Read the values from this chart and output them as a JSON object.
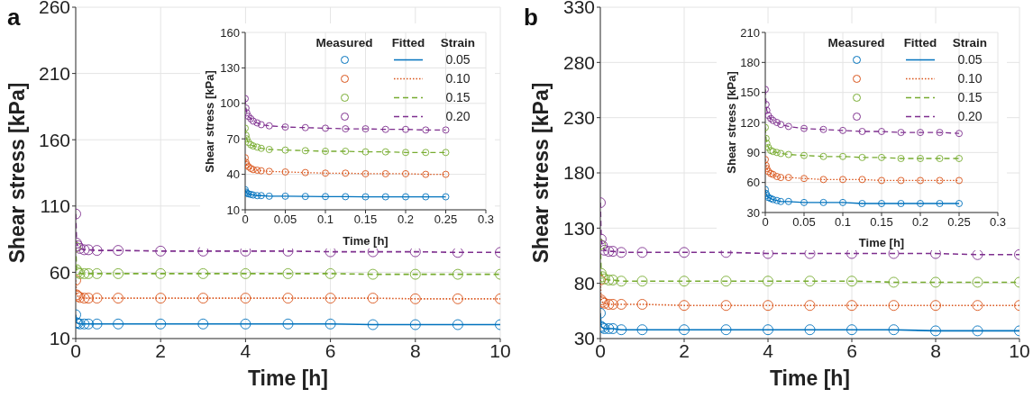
{
  "chart_data": [
    {
      "type": "line",
      "xlabel": "Time [h]",
      "ylabel": "Shear stress [kPa]",
      "annotations": [
        "a"
      ],
      "xlim": [
        0,
        10
      ],
      "ylim": [
        10,
        260
      ],
      "xticks": [
        0,
        2,
        4,
        6,
        8,
        10
      ],
      "yticks": [
        10,
        60,
        110,
        160,
        210,
        260
      ],
      "grid": true,
      "x": [
        0,
        0.02,
        0.05,
        0.1,
        0.2,
        0.3,
        0.5,
        1,
        2,
        3,
        4,
        5,
        6,
        7,
        8,
        9,
        10
      ],
      "series": [
        {
          "type": "scatter",
          "marker": "circle",
          "color": "#0072bd",
          "values": [
            28,
            22,
            21.5,
            21,
            21,
            21,
            21,
            21,
            21,
            21,
            21,
            21,
            21,
            20.5,
            20.5,
            20.5,
            20.5
          ]
        },
        {
          "type": "scatter",
          "marker": "circle",
          "color": "#d95319",
          "values": [
            54,
            43,
            42,
            41,
            40.5,
            40.5,
            40.5,
            40.5,
            40.5,
            40.5,
            40.5,
            40.5,
            40.5,
            40.5,
            40,
            40,
            40
          ]
        },
        {
          "type": "scatter",
          "marker": "circle",
          "color": "#77ac30",
          "values": [
            79,
            62,
            60,
            59,
            59,
            59,
            59,
            59,
            59,
            59,
            59,
            59,
            59,
            58.5,
            58.5,
            58.5,
            58.5
          ]
        },
        {
          "type": "scatter",
          "marker": "circle",
          "color": "#7e2f8e",
          "values": [
            104,
            82,
            80,
            78,
            77,
            77,
            76.5,
            76.5,
            76,
            76,
            76,
            76,
            75.5,
            75.5,
            75.5,
            75,
            75
          ]
        },
        {
          "type": "line",
          "line_style": "solid",
          "color": "#0072bd",
          "values": [
            28,
            22,
            21.5,
            21,
            21,
            21,
            21,
            21,
            21,
            21,
            21,
            21,
            21,
            20.5,
            20.5,
            20.5,
            20.5
          ]
        },
        {
          "type": "line",
          "line_style": "dotted",
          "color": "#d95319",
          "values": [
            54,
            43,
            42,
            41,
            40.5,
            40.5,
            40.5,
            40.5,
            40.5,
            40.5,
            40.5,
            40.5,
            40.5,
            40.5,
            40,
            40,
            40
          ]
        },
        {
          "type": "line",
          "line_style": "dashed",
          "color": "#77ac30",
          "values": [
            79,
            62,
            60,
            59,
            59,
            59,
            59,
            59,
            59,
            59,
            59,
            59,
            59,
            58.5,
            58.5,
            58.5,
            58.5
          ]
        },
        {
          "type": "line",
          "line_style": "dashed",
          "color": "#7e2f8e",
          "values": [
            104,
            82,
            80,
            78,
            77,
            77,
            76.5,
            76.5,
            76,
            76,
            76,
            76,
            75.5,
            75.5,
            75.5,
            75,
            75
          ]
        }
      ]
    },
    {
      "type": "line",
      "xlabel": "Time [h]",
      "ylabel": "Shear stress [kPa]",
      "annotations": [
        "Measured",
        "Fitted"
      ],
      "legend_title": "Strain",
      "legend": "top right",
      "xlim": [
        0,
        0.3
      ],
      "ylim": [
        10,
        160
      ],
      "xticks": [
        0,
        0.05,
        0.1,
        0.15,
        0.2,
        0.25,
        0.3
      ],
      "yticks": [
        10,
        40,
        70,
        100,
        130,
        160
      ],
      "grid": true,
      "x": [
        0,
        0.001,
        0.002,
        0.004,
        0.007,
        0.01,
        0.015,
        0.02,
        0.03,
        0.05,
        0.075,
        0.1,
        0.125,
        0.15,
        0.175,
        0.2,
        0.225,
        0.25
      ],
      "series": [
        {
          "type": "scatter",
          "marker": "circle",
          "name": "0.05",
          "color": "#0072bd",
          "values": [
            27,
            25,
            24,
            23.5,
            23,
            22.5,
            22,
            22,
            21.5,
            21.5,
            21.3,
            21.2,
            21.1,
            21,
            21,
            21,
            21,
            21
          ]
        },
        {
          "type": "scatter",
          "marker": "circle",
          "name": "0.10",
          "color": "#d95319",
          "values": [
            54,
            50,
            48,
            46.5,
            45,
            44,
            43.5,
            43,
            42.5,
            42,
            41.5,
            41,
            41,
            40.5,
            40.5,
            40.5,
            40,
            40
          ]
        },
        {
          "type": "scatter",
          "marker": "circle",
          "name": "0.15",
          "color": "#77ac30",
          "values": [
            79,
            73,
            70,
            67,
            65,
            64,
            63,
            62,
            61,
            60.5,
            60,
            59.5,
            59.5,
            59,
            59,
            58.5,
            58.5,
            58.5
          ]
        },
        {
          "type": "scatter",
          "marker": "circle",
          "name": "0.20",
          "color": "#7e2f8e",
          "values": [
            104,
            96,
            92,
            89,
            87,
            85,
            83.5,
            82,
            81,
            80,
            79.5,
            79,
            78.5,
            78.5,
            78,
            78,
            77.5,
            77.5
          ]
        },
        {
          "type": "line",
          "line_style": "solid",
          "color": "#0072bd",
          "values": [
            27,
            25,
            24,
            23.5,
            23,
            22.5,
            22,
            22,
            21.5,
            21.5,
            21.3,
            21.2,
            21.1,
            21,
            21,
            21,
            21,
            21
          ]
        },
        {
          "type": "line",
          "line_style": "dotted",
          "color": "#d95319",
          "values": [
            54,
            50,
            48,
            46.5,
            45,
            44,
            43.5,
            43,
            42.5,
            42,
            41.5,
            41,
            41,
            40.5,
            40.5,
            40.5,
            40,
            40
          ]
        },
        {
          "type": "line",
          "line_style": "dashed",
          "color": "#77ac30",
          "values": [
            79,
            73,
            70,
            67,
            65,
            64,
            63,
            62,
            61,
            60.5,
            60,
            59.5,
            59.5,
            59,
            59,
            58.5,
            58.5,
            58.5
          ]
        },
        {
          "type": "line",
          "line_style": "dashed",
          "color": "#7e2f8e",
          "values": [
            104,
            96,
            92,
            89,
            87,
            85,
            83.5,
            82,
            81,
            80,
            79.5,
            79,
            78.5,
            78.5,
            78,
            78,
            77.5,
            77.5
          ]
        }
      ]
    },
    {
      "type": "line",
      "xlabel": "Time [h]",
      "ylabel": "Shear stress [kPa]",
      "annotations": [
        "b"
      ],
      "xlim": [
        0,
        10
      ],
      "ylim": [
        30,
        330
      ],
      "xticks": [
        0,
        2,
        4,
        6,
        8,
        10
      ],
      "yticks": [
        30,
        80,
        130,
        180,
        230,
        280,
        330
      ],
      "grid": true,
      "x": [
        0,
        0.02,
        0.05,
        0.1,
        0.2,
        0.3,
        0.5,
        1,
        2,
        3,
        4,
        5,
        6,
        7,
        8,
        9,
        10
      ],
      "series": [
        {
          "type": "scatter",
          "marker": "circle",
          "color": "#0072bd",
          "values": [
            53,
            41,
            40,
            39,
            39,
            39,
            38,
            38,
            38,
            38,
            38,
            38,
            38,
            38,
            37,
            37,
            37
          ]
        },
        {
          "type": "scatter",
          "marker": "circle",
          "color": "#d95319",
          "values": [
            83,
            65,
            63,
            62,
            61,
            61,
            61,
            61,
            60,
            60,
            60,
            60,
            60,
            60,
            60,
            60,
            60
          ]
        },
        {
          "type": "scatter",
          "marker": "circle",
          "color": "#77ac30",
          "values": [
            115,
            89,
            86,
            84,
            83,
            83,
            82,
            82,
            82,
            82,
            82,
            82,
            82,
            81,
            81,
            81,
            81
          ]
        },
        {
          "type": "scatter",
          "marker": "circle",
          "color": "#7e2f8e",
          "values": [
            153,
            120,
            114,
            110,
            109,
            109,
            108,
            108,
            108,
            108,
            107,
            107,
            107,
            107,
            107,
            106,
            106
          ]
        },
        {
          "type": "line",
          "line_style": "solid",
          "color": "#0072bd",
          "values": [
            53,
            41,
            40,
            39,
            39,
            39,
            38,
            38,
            38,
            38,
            38,
            38,
            38,
            38,
            37,
            37,
            37
          ]
        },
        {
          "type": "line",
          "line_style": "dotted",
          "color": "#d95319",
          "values": [
            83,
            65,
            63,
            62,
            61,
            61,
            61,
            61,
            60,
            60,
            60,
            60,
            60,
            60,
            60,
            60,
            60
          ]
        },
        {
          "type": "line",
          "line_style": "dashed",
          "color": "#77ac30",
          "values": [
            115,
            89,
            86,
            84,
            83,
            83,
            82,
            82,
            82,
            82,
            82,
            82,
            82,
            81,
            81,
            81,
            81
          ]
        },
        {
          "type": "line",
          "line_style": "dashed",
          "color": "#7e2f8e",
          "values": [
            153,
            120,
            114,
            110,
            109,
            109,
            108,
            108,
            108,
            108,
            107,
            107,
            107,
            107,
            107,
            106,
            106
          ]
        }
      ]
    },
    {
      "type": "line",
      "xlabel": "Time [h]",
      "ylabel": "Shear stress [kPa]",
      "annotations": [
        "Measured",
        "Fitted"
      ],
      "legend_title": "Strain",
      "legend": "top right",
      "xlim": [
        0,
        0.3
      ],
      "ylim": [
        30,
        210
      ],
      "xticks": [
        0,
        0.05,
        0.1,
        0.15,
        0.2,
        0.25,
        0.3
      ],
      "yticks": [
        30,
        60,
        90,
        120,
        150,
        180,
        210
      ],
      "grid": true,
      "x": [
        0,
        0.001,
        0.002,
        0.004,
        0.007,
        0.01,
        0.015,
        0.02,
        0.03,
        0.05,
        0.075,
        0.1,
        0.125,
        0.15,
        0.175,
        0.2,
        0.225,
        0.25
      ],
      "series": [
        {
          "type": "scatter",
          "marker": "circle",
          "name": "0.05",
          "color": "#0072bd",
          "values": [
            53,
            49,
            47,
            45,
            44,
            43,
            42,
            41,
            41,
            40,
            40,
            40,
            39,
            39,
            39,
            39,
            39,
            39
          ]
        },
        {
          "type": "scatter",
          "marker": "circle",
          "name": "0.10",
          "color": "#d95319",
          "values": [
            83,
            77,
            74,
            71,
            69,
            68,
            66,
            65,
            65,
            64,
            63,
            63,
            63,
            62,
            62,
            62,
            62,
            62
          ]
        },
        {
          "type": "scatter",
          "marker": "circle",
          "name": "0.15",
          "color": "#77ac30",
          "values": [
            115,
            104,
            99,
            95,
            92,
            91,
            90,
            89,
            88,
            87,
            86,
            86,
            85,
            85,
            84,
            84,
            84,
            84
          ]
        },
        {
          "type": "scatter",
          "marker": "circle",
          "name": "0.20",
          "color": "#7e2f8e",
          "values": [
            153,
            138,
            132,
            127,
            124,
            122,
            120,
            118,
            116,
            114,
            113,
            112,
            111,
            111,
            110,
            110,
            110,
            109
          ]
        },
        {
          "type": "line",
          "line_style": "solid",
          "color": "#0072bd",
          "values": [
            53,
            49,
            47,
            45,
            44,
            43,
            42,
            41,
            41,
            40,
            40,
            40,
            39,
            39,
            39,
            39,
            39,
            39
          ]
        },
        {
          "type": "line",
          "line_style": "dotted",
          "color": "#d95319",
          "values": [
            83,
            77,
            74,
            71,
            69,
            68,
            66,
            65,
            65,
            64,
            63,
            63,
            63,
            62,
            62,
            62,
            62,
            62
          ]
        },
        {
          "type": "line",
          "line_style": "dashed",
          "color": "#77ac30",
          "values": [
            115,
            104,
            99,
            95,
            92,
            91,
            90,
            89,
            88,
            87,
            86,
            86,
            85,
            85,
            84,
            84,
            84,
            84
          ]
        },
        {
          "type": "line",
          "line_style": "dashed",
          "color": "#7e2f8e",
          "values": [
            153,
            138,
            132,
            127,
            124,
            122,
            120,
            118,
            116,
            114,
            113,
            112,
            111,
            111,
            110,
            110,
            110,
            109
          ]
        }
      ]
    }
  ]
}
